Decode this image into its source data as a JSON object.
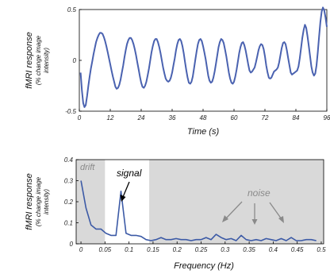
{
  "chart_data": [
    {
      "type": "line",
      "title": "",
      "xlabel": "Time (s)",
      "ylabel": "fMRI response",
      "ylabel_sub": [
        "(% change image",
        "intensity)"
      ],
      "xlim": [
        0,
        96
      ],
      "ylim": [
        -0.5,
        0.5
      ],
      "xticks": [
        0,
        12,
        24,
        36,
        48,
        60,
        72,
        84,
        96
      ],
      "yticks": [
        -0.5,
        0,
        0.5
      ],
      "ytick_labels": [
        "-0.5",
        "0",
        "0.5"
      ],
      "series": [
        {
          "color": "#4a62b0",
          "x": [
            0.5,
            1.0,
            1.5,
            2.0,
            2.5,
            3.0,
            3.5,
            4.0,
            4.5,
            5.0,
            5.5,
            6.0,
            6.5,
            7.0,
            7.5,
            8.0,
            8.5,
            9.0,
            9.5,
            10.0,
            10.5,
            11.0,
            11.5,
            12.0,
            12.5,
            13.0,
            13.5,
            14.0,
            14.5,
            15.0,
            15.5,
            16.0,
            16.5,
            17.0,
            17.5,
            18.0,
            18.5,
            19.0,
            19.5,
            20.0,
            20.5,
            21.0,
            21.5,
            22.0,
            22.5,
            23.0,
            23.5,
            24.0,
            24.5,
            25.0,
            25.5,
            26.0,
            26.5,
            27.0,
            27.5,
            28.0,
            28.5,
            29.0,
            29.5,
            30.0,
            30.5,
            31.0,
            31.5,
            32.0,
            32.5,
            33.0,
            33.5,
            34.0,
            34.5,
            35.0,
            35.5,
            36.0,
            36.5,
            37.0,
            37.5,
            38.0,
            38.5,
            39.0,
            39.5,
            40.0,
            40.5,
            41.0,
            41.5,
            42.0,
            42.5,
            43.0,
            43.5,
            44.0,
            44.5,
            45.0,
            45.5,
            46.0,
            46.5,
            47.0,
            47.5,
            48.0,
            48.5,
            49.0,
            49.5,
            50.0,
            50.5,
            51.0,
            51.5,
            52.0,
            52.5,
            53.0,
            53.5,
            54.0,
            54.5,
            55.0,
            55.5,
            56.0,
            56.5,
            57.0,
            57.5,
            58.0,
            58.5,
            59.0,
            59.5,
            60.0,
            60.5,
            61.0,
            61.5,
            62.0,
            62.5,
            63.0,
            63.5,
            64.0,
            64.5,
            65.0,
            65.5,
            66.0,
            66.5,
            67.0,
            67.5,
            68.0,
            68.5,
            69.0,
            69.5,
            70.0,
            70.5,
            71.0,
            71.5,
            72.0,
            72.5,
            73.0,
            73.5,
            74.0,
            74.5,
            75.0,
            75.5,
            76.0,
            76.5,
            77.0,
            77.5,
            78.0,
            78.5,
            79.0,
            79.5,
            80.0,
            80.5,
            81.0,
            81.5,
            82.0,
            82.5,
            83.0,
            83.5,
            84.0,
            84.5,
            85.0,
            85.5,
            86.0,
            86.5,
            87.0,
            87.5,
            88.0,
            88.5,
            89.0,
            89.5,
            90.0,
            90.5,
            91.0,
            91.5,
            92.0,
            92.5,
            93.0,
            93.5,
            94.0,
            94.5,
            95.0,
            95.5,
            96.0
          ],
          "y": [
            -0.12,
            -0.3,
            -0.42,
            -0.46,
            -0.44,
            -0.35,
            -0.25,
            -0.16,
            -0.08,
            -0.01,
            0.06,
            0.12,
            0.18,
            0.22,
            0.25,
            0.27,
            0.27,
            0.26,
            0.23,
            0.19,
            0.14,
            0.08,
            0.02,
            -0.04,
            -0.1,
            -0.16,
            -0.21,
            -0.26,
            -0.28,
            -0.27,
            -0.24,
            -0.19,
            -0.12,
            -0.05,
            0.03,
            0.1,
            0.16,
            0.2,
            0.22,
            0.22,
            0.2,
            0.16,
            0.11,
            0.05,
            -0.02,
            -0.09,
            -0.16,
            -0.22,
            -0.26,
            -0.27,
            -0.25,
            -0.21,
            -0.15,
            -0.08,
            0.0,
            0.08,
            0.14,
            0.19,
            0.21,
            0.21,
            0.18,
            0.13,
            0.07,
            0.0,
            -0.07,
            -0.13,
            -0.18,
            -0.2,
            -0.21,
            -0.2,
            -0.17,
            -0.12,
            -0.05,
            0.02,
            0.1,
            0.16,
            0.2,
            0.21,
            0.19,
            0.14,
            0.07,
            -0.02,
            -0.1,
            -0.17,
            -0.22,
            -0.23,
            -0.21,
            -0.16,
            -0.08,
            0.01,
            0.09,
            0.16,
            0.2,
            0.21,
            0.19,
            0.14,
            0.08,
            0.01,
            -0.07,
            -0.15,
            -0.2,
            -0.22,
            -0.21,
            -0.17,
            -0.11,
            -0.03,
            0.05,
            0.13,
            0.18,
            0.21,
            0.2,
            0.17,
            0.11,
            0.04,
            -0.04,
            -0.12,
            -0.18,
            -0.22,
            -0.23,
            -0.21,
            -0.16,
            -0.09,
            -0.01,
            0.07,
            0.13,
            0.17,
            0.18,
            0.15,
            0.1,
            0.03,
            -0.04,
            -0.1,
            -0.12,
            -0.11,
            -0.09,
            -0.07,
            -0.02,
            0.04,
            0.1,
            0.14,
            0.16,
            0.15,
            0.11,
            0.04,
            -0.05,
            -0.12,
            -0.17,
            -0.18,
            -0.17,
            -0.14,
            -0.11,
            -0.1,
            -0.09,
            -0.07,
            -0.02,
            0.05,
            0.12,
            0.17,
            0.18,
            0.16,
            0.1,
            0.02,
            -0.05,
            -0.12,
            -0.14,
            -0.13,
            -0.12,
            -0.11,
            -0.1,
            -0.06,
            0.02,
            0.12,
            0.22,
            0.3,
            0.35,
            0.32,
            0.24,
            0.14,
            0.04,
            -0.06,
            -0.12,
            -0.15,
            -0.13,
            -0.05,
            0.08,
            0.24,
            0.38,
            0.48,
            0.52,
            0.49,
            0.42,
            0.33
          ]
        }
      ]
    },
    {
      "type": "line",
      "title": "",
      "xlabel": "Frequency (Hz)",
      "ylabel": "fMRI response",
      "ylabel_sub": [
        "(% change image",
        "intensity)"
      ],
      "xlim": [
        -0.01,
        0.505
      ],
      "ylim": [
        0,
        0.4
      ],
      "xticks": [
        0,
        0.05,
        0.1,
        0.15,
        0.2,
        0.25,
        0.3,
        0.35,
        0.4,
        0.45,
        0.5
      ],
      "xtick_labels": [
        "0",
        "0.05",
        "0.1",
        "0.15",
        "0.2",
        "0.25",
        "0.3",
        "0.35",
        "0.4",
        "0.45",
        "0.5"
      ],
      "yticks": [
        0,
        0.1,
        0.2,
        0.3,
        0.4
      ],
      "ytick_labels": [
        "0",
        "0.1",
        "0.2",
        "0.3",
        "0.4"
      ],
      "regions": [
        {
          "x0": -0.01,
          "x1": 0.05,
          "label": "drift"
        },
        {
          "x0": 0.142,
          "x1": 0.505,
          "label": "noise"
        }
      ],
      "series": [
        {
          "color": "#3c5aa6",
          "x": [
            0.0,
            0.0104,
            0.0208,
            0.0312,
            0.0417,
            0.0521,
            0.0625,
            0.0729,
            0.0833,
            0.0938,
            0.1042,
            0.1146,
            0.125,
            0.1354,
            0.1458,
            0.1562,
            0.1667,
            0.1771,
            0.1875,
            0.1979,
            0.2083,
            0.2188,
            0.2292,
            0.2396,
            0.25,
            0.2604,
            0.2708,
            0.2812,
            0.2917,
            0.3021,
            0.3125,
            0.3229,
            0.3333,
            0.3438,
            0.3542,
            0.3646,
            0.375,
            0.3854,
            0.3958,
            0.4062,
            0.4167,
            0.4271,
            0.4375,
            0.4479,
            0.4583,
            0.4688,
            0.4792,
            0.4896
          ],
          "y": [
            0.3,
            0.17,
            0.09,
            0.07,
            0.07,
            0.05,
            0.04,
            0.04,
            0.25,
            0.05,
            0.04,
            0.04,
            0.035,
            0.02,
            0.015,
            0.02,
            0.03,
            0.02,
            0.02,
            0.025,
            0.02,
            0.02,
            0.015,
            0.02,
            0.02,
            0.03,
            0.02,
            0.045,
            0.03,
            0.02,
            0.025,
            0.015,
            0.04,
            0.02,
            0.015,
            0.02,
            0.015,
            0.025,
            0.02,
            0.015,
            0.025,
            0.015,
            0.03,
            0.015,
            0.015,
            0.02,
            0.02,
            0.015
          ]
        }
      ],
      "annotations": {
        "signal": "signal",
        "noise": "noise",
        "drift": "drift"
      }
    }
  ]
}
